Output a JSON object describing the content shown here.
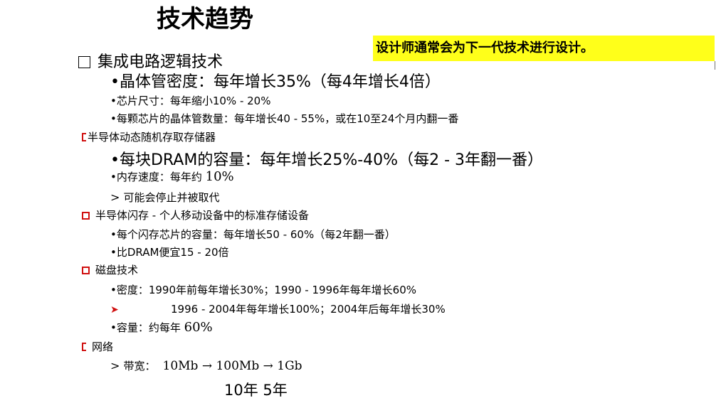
{
  "title": "技术趋势",
  "banner": "设计师通常会为下一代技术进行设计。",
  "sections": {
    "ic": {
      "heading": "集成电路逻辑技术",
      "transistor_density": "•晶体管密度：每年增长35%（每4年增长4倍）",
      "die_size": "•芯片尺寸：每年缩小10% - 20%",
      "transistor_count": "•每颗芯片的晶体管数量：每年增长40 - 55%，或在10至24个月内翻一番"
    },
    "dram": {
      "heading": "半导体动态随机存取存储器",
      "capacity": "•每块DRAM的容量：每年增长25%-40%（每2 - 3年翻一番）",
      "speed_label": "•内存速度：每年约 ",
      "speed_value": "10%",
      "note_prefix": "> ",
      "note": "可能会停止并被取代"
    },
    "flash": {
      "heading": "半导体闪存 - 个人移动设备中的标准存储设备",
      "capacity": "•每个闪存芯片的容量：每年增长50 - 60%（每2年翻一番）",
      "cost": "•比DRAM便宜15 - 20倍"
    },
    "disk": {
      "heading": "磁盘技术",
      "density_1": "•密度：1990年前每年增长30%；1990 - 1996年每年增长60%",
      "density_2": "1996 - 2004年每年增长100%；2004年后每年增长30%",
      "capacity_label": "•容量：约每年 ",
      "capacity_value": "60%"
    },
    "network": {
      "heading": "网络",
      "bandwidth_prefix": "> ",
      "bandwidth_label": "带宽：",
      "bandwidth_value": "10Mb → 100Mb → 1Gb",
      "years": "10年 5年"
    }
  }
}
